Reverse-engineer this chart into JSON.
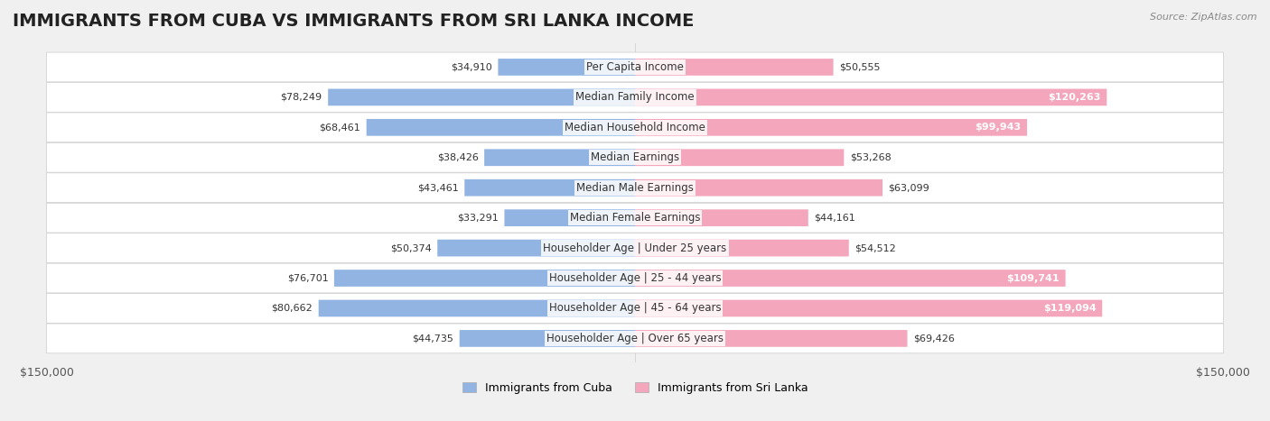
{
  "title": "IMMIGRANTS FROM CUBA VS IMMIGRANTS FROM SRI LANKA INCOME",
  "source": "Source: ZipAtlas.com",
  "categories": [
    "Per Capita Income",
    "Median Family Income",
    "Median Household Income",
    "Median Earnings",
    "Median Male Earnings",
    "Median Female Earnings",
    "Householder Age | Under 25 years",
    "Householder Age | 25 - 44 years",
    "Householder Age | 45 - 64 years",
    "Householder Age | Over 65 years"
  ],
  "cuba_values": [
    34910,
    78249,
    68461,
    38426,
    43461,
    33291,
    50374,
    76701,
    80662,
    44735
  ],
  "srilanka_values": [
    50555,
    120263,
    99943,
    53268,
    63099,
    44161,
    54512,
    109741,
    119094,
    69426
  ],
  "cuba_color": "#92b4e3",
  "cuba_color_dark": "#5b8dd9",
  "srilanka_color": "#f4a7bc",
  "srilanka_color_dark": "#e8618a",
  "max_value": 150000,
  "x_ticks": [
    -150000,
    150000
  ],
  "x_tick_labels": [
    "$150,000",
    "$150,000"
  ],
  "background_color": "#f0f0f0",
  "row_bg_color": "#ffffff",
  "legend_cuba": "Immigrants from Cuba",
  "legend_srilanka": "Immigrants from Sri Lanka",
  "title_fontsize": 14,
  "label_fontsize": 8.5,
  "value_fontsize": 8,
  "highlight_threshold": 90000
}
